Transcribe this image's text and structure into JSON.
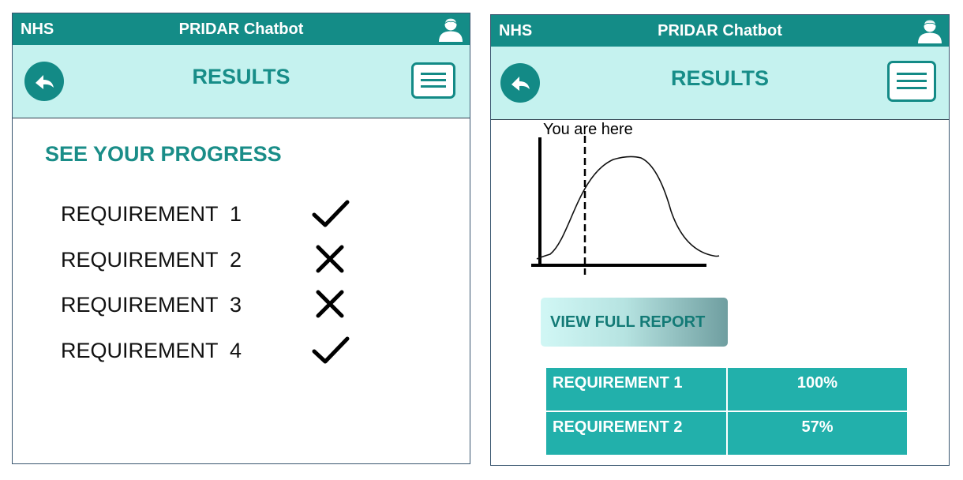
{
  "left_screen": {
    "header": {
      "brand": "NHS",
      "title": "PRIDAR Chatbot",
      "user_icon": "user-icon"
    },
    "subheader": {
      "back_icon": "back-arrow-icon",
      "title": "RESULTS",
      "menu_icon": "hamburger-menu-icon"
    },
    "progress_title": "SEE YOUR PROGRESS",
    "requirements": [
      {
        "label": "REQUIREMENT  1",
        "status": "check"
      },
      {
        "label": "REQUIREMENT  2",
        "status": "cross"
      },
      {
        "label": "REQUIREMENT  3",
        "status": "cross"
      },
      {
        "label": "REQUIREMENT  4",
        "status": "check"
      }
    ]
  },
  "right_screen": {
    "header": {
      "brand": "NHS",
      "title": "PRIDAR Chatbot",
      "user_icon": "user-icon"
    },
    "subheader": {
      "back_icon": "back-arrow-icon",
      "title": "RESULTS",
      "menu_icon": "hamburger-menu-icon"
    },
    "chart_annotation": "You are here",
    "view_report_label": "VIEW FULL REPORT",
    "table": [
      {
        "name": "REQUIREMENT 1",
        "value": "100%"
      },
      {
        "name": "REQUIREMENT 2",
        "value": "57%"
      }
    ]
  },
  "chart_data": {
    "type": "line",
    "title": "",
    "xlabel": "",
    "ylabel": "",
    "curve": "bell-shaped",
    "annotation": "You are here",
    "marker_line": "dashed vertical"
  },
  "colors": {
    "header": "#148c87",
    "subheader": "#c5f2ef",
    "accent": "#178d88",
    "table": "#22b0ab"
  }
}
